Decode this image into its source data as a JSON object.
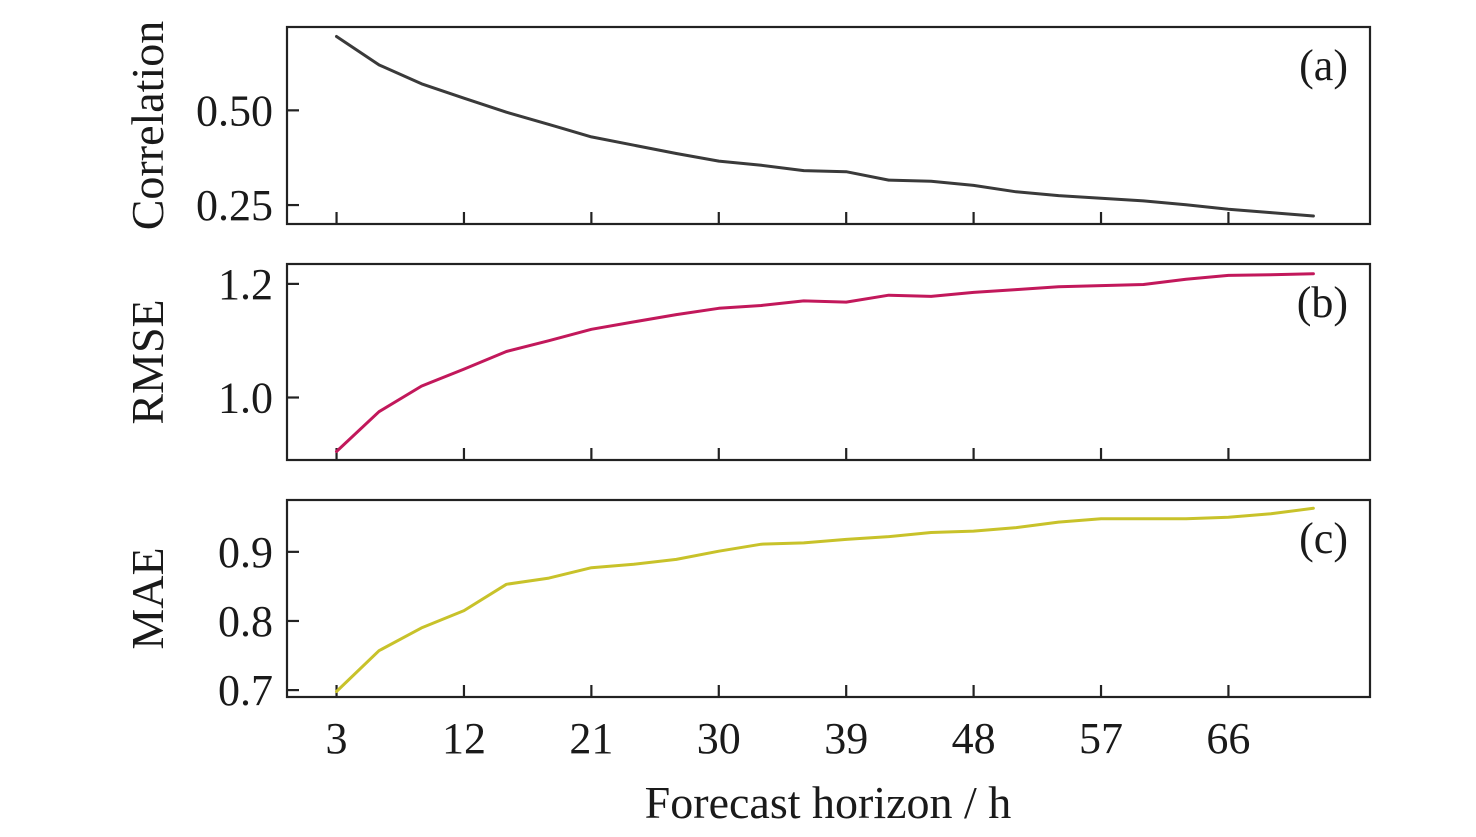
{
  "chart_data": [
    {
      "type": "line",
      "panel": "(a)",
      "ylabel": "Correlation",
      "x": [
        3,
        6,
        9,
        12,
        15,
        18,
        21,
        24,
        27,
        30,
        33,
        36,
        39,
        42,
        45,
        48,
        51,
        54,
        57,
        60,
        63,
        66,
        69,
        72
      ],
      "values": [
        0.695,
        0.62,
        0.57,
        0.532,
        0.495,
        0.463,
        0.43,
        0.408,
        0.386,
        0.366,
        0.355,
        0.341,
        0.338,
        0.316,
        0.313,
        0.302,
        0.285,
        0.275,
        0.268,
        0.261,
        0.251,
        0.239,
        0.23,
        0.221
      ],
      "yticks": [
        0.25,
        0.5
      ],
      "ytick_labels": [
        "0.25",
        "0.50"
      ],
      "ylim": [
        0.2,
        0.72
      ],
      "color": "#3a3a3a"
    },
    {
      "type": "line",
      "panel": "(b)",
      "ylabel": "RMSE",
      "x": [
        3,
        6,
        9,
        12,
        15,
        18,
        21,
        24,
        27,
        30,
        33,
        36,
        39,
        42,
        45,
        48,
        51,
        54,
        57,
        60,
        63,
        66,
        69,
        72
      ],
      "values": [
        0.905,
        0.975,
        1.02,
        1.05,
        1.081,
        1.1,
        1.12,
        1.133,
        1.146,
        1.157,
        1.162,
        1.17,
        1.168,
        1.18,
        1.178,
        1.185,
        1.19,
        1.195,
        1.197,
        1.199,
        1.208,
        1.215,
        1.216,
        1.218
      ],
      "yticks": [
        1.0,
        1.2
      ],
      "ytick_labels": [
        "1.0",
        "1.2"
      ],
      "ylim": [
        0.89,
        1.235
      ],
      "color": "#c2185b"
    },
    {
      "type": "line",
      "panel": "(c)",
      "ylabel": "MAE",
      "x": [
        3,
        6,
        9,
        12,
        15,
        18,
        21,
        24,
        27,
        30,
        33,
        36,
        39,
        42,
        45,
        48,
        51,
        54,
        57,
        60,
        63,
        66,
        69,
        72
      ],
      "values": [
        0.698,
        0.757,
        0.79,
        0.815,
        0.853,
        0.862,
        0.877,
        0.882,
        0.889,
        0.901,
        0.911,
        0.913,
        0.918,
        0.922,
        0.928,
        0.93,
        0.935,
        0.943,
        0.948,
        0.948,
        0.948,
        0.95,
        0.955,
        0.963
      ],
      "yticks": [
        0.7,
        0.8,
        0.9
      ],
      "ytick_labels": [
        "0.7",
        "0.8",
        "0.9"
      ],
      "ylim": [
        0.69,
        0.975
      ],
      "color": "#c8c22a"
    }
  ],
  "x_axis": {
    "label": "Forecast horizon / h",
    "ticks": [
      3,
      12,
      21,
      30,
      39,
      48,
      57,
      66
    ],
    "tick_labels": [
      "3",
      "12",
      "21",
      "30",
      "39",
      "48",
      "57",
      "66"
    ],
    "minor_ticks": [
      3,
      12,
      21,
      30,
      39,
      48,
      57,
      66
    ],
    "xlim": [
      -0.5,
      76
    ]
  }
}
